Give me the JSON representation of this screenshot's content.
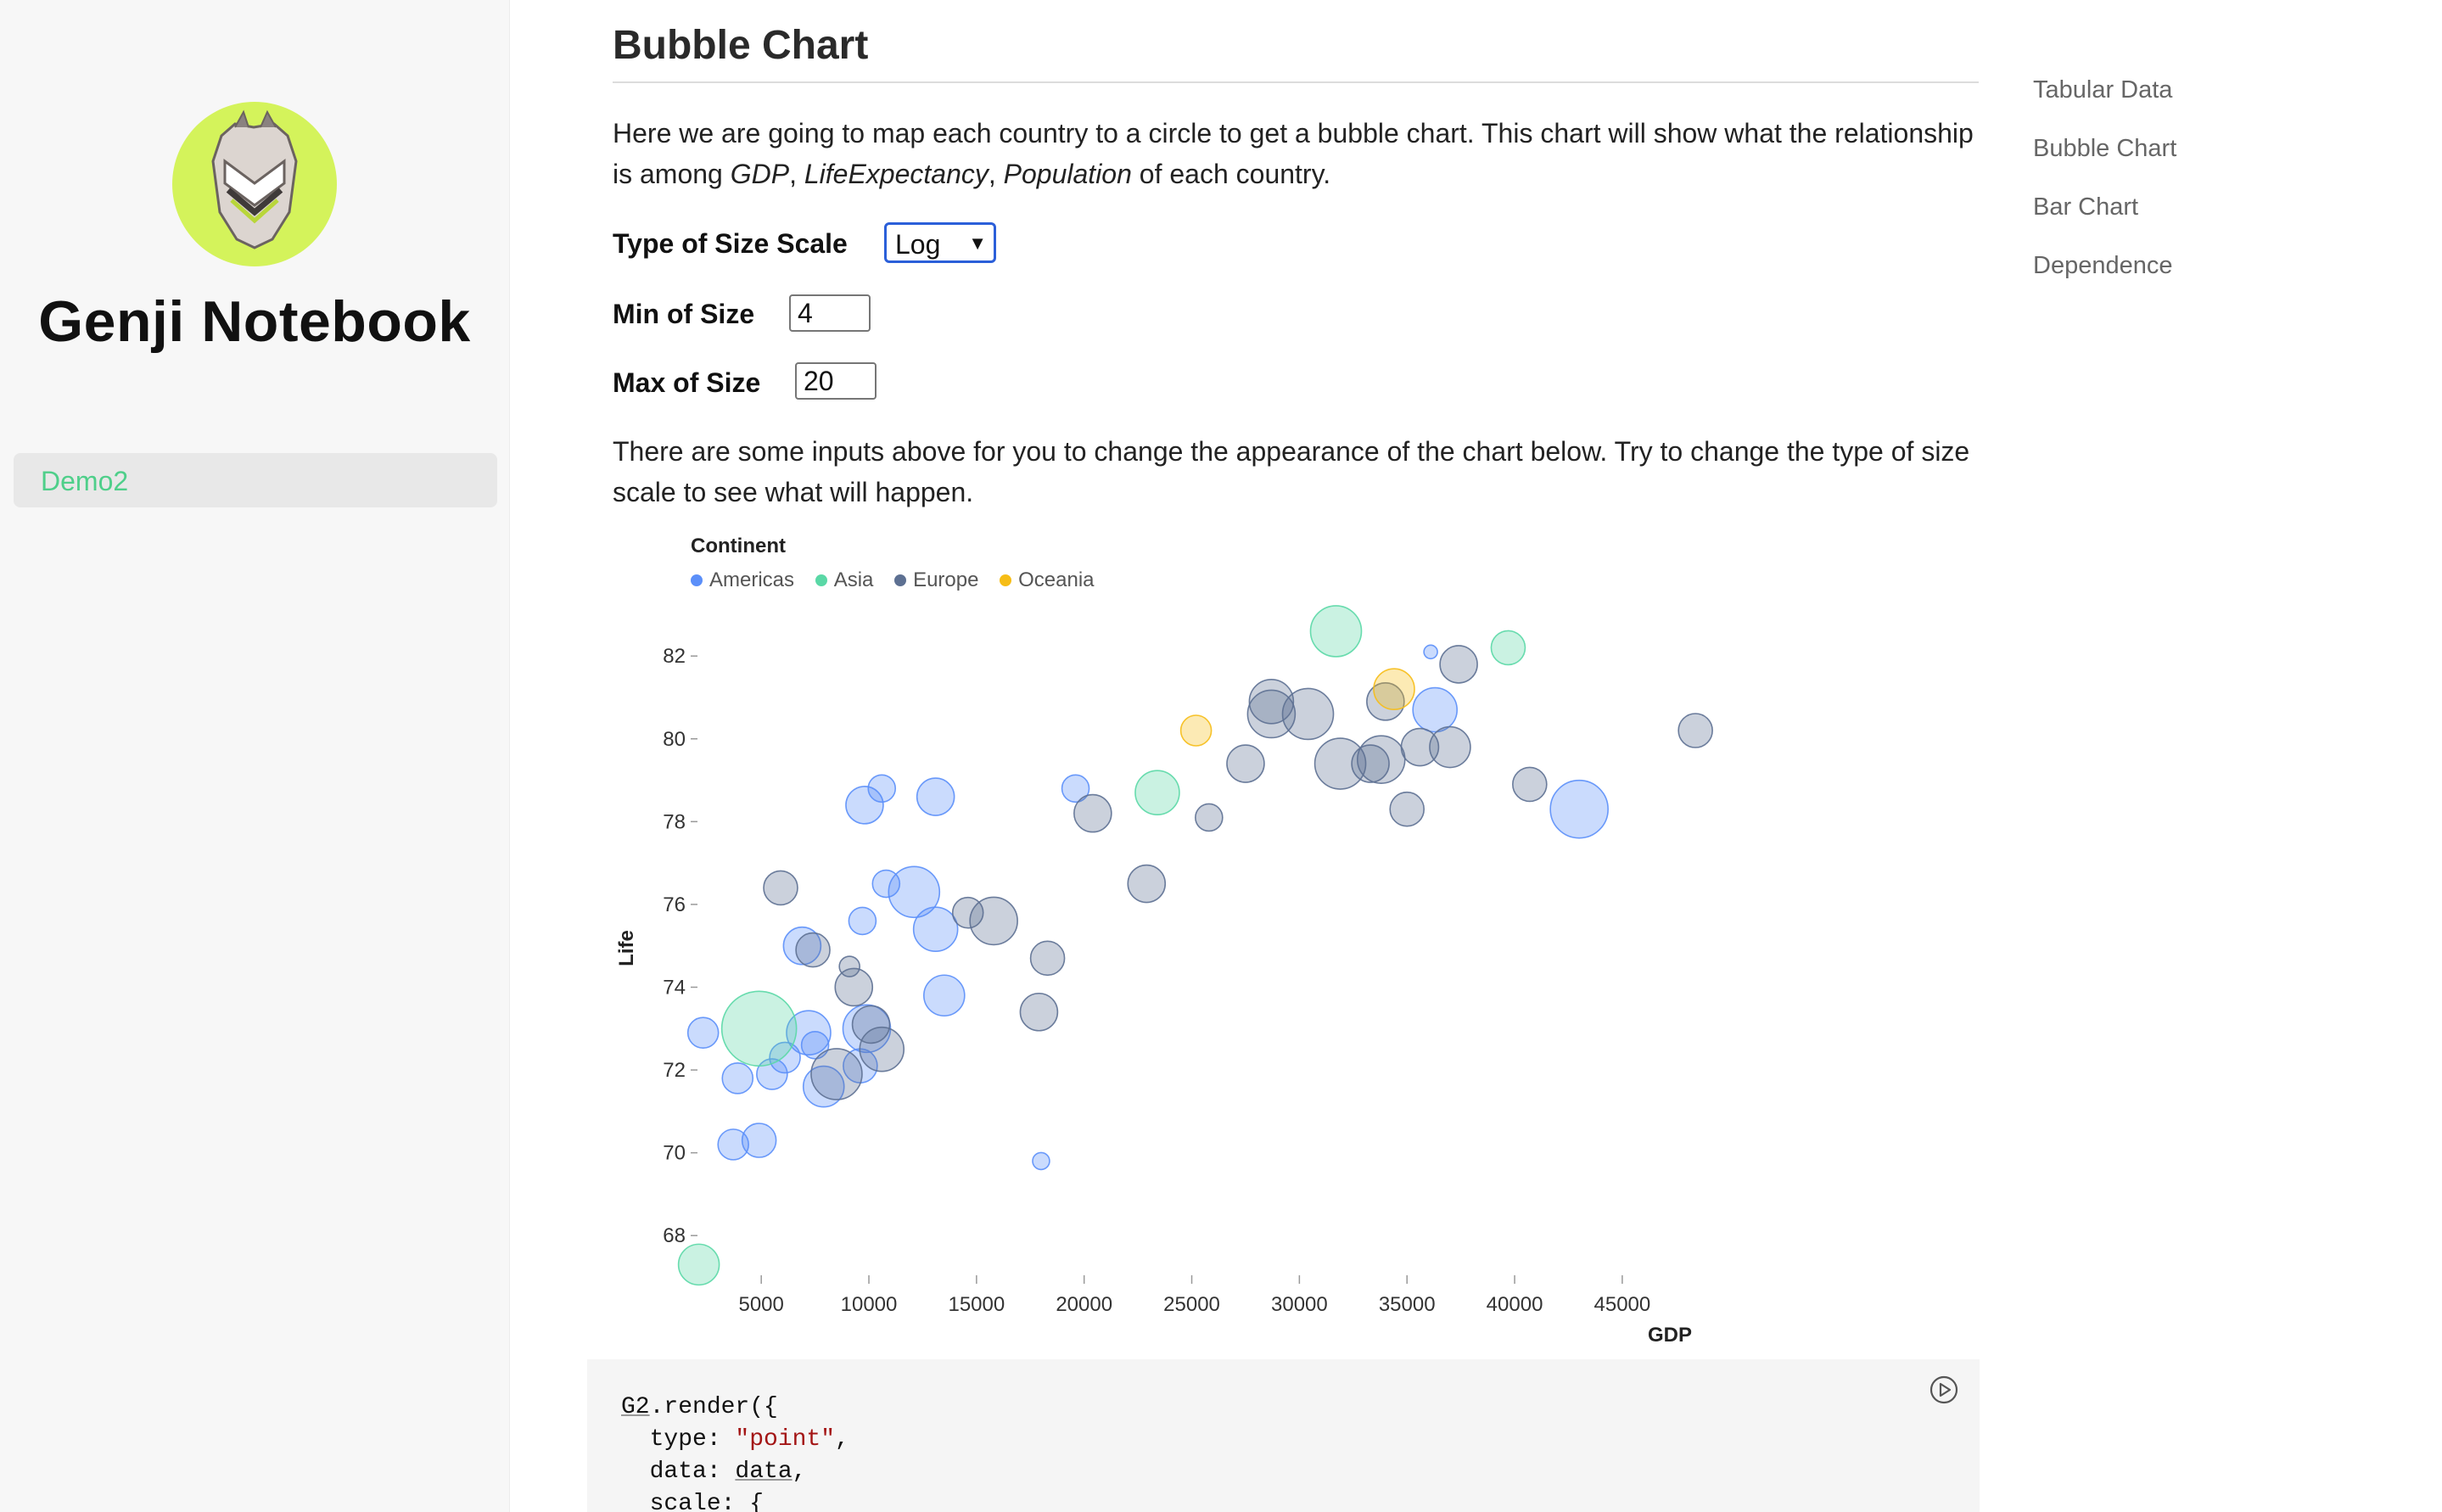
{
  "sidebar": {
    "brand": "Genji Notebook",
    "nav": [
      {
        "label": "Demo2",
        "active": true
      }
    ]
  },
  "main": {
    "title": "Bubble Chart",
    "intro": {
      "before": "Here we are going to map each country to a circle to get a bubble chart. This chart will show what the relationship is among ",
      "term1": "GDP",
      "sep1": ", ",
      "term2": "LifeExpectancy",
      "sep2": ", ",
      "term3": "Population",
      "after": " of each country."
    },
    "controls": {
      "scale_label": "Type of Size Scale",
      "scale_value": "Log",
      "min_label": "Min of Size",
      "min_value": "4",
      "max_label": "Max of Size",
      "max_value": "20"
    },
    "note": "There are some inputs above for you to change the appearance of the chart below. Try to change the type of size scale to see what will happen."
  },
  "chart_data": {
    "type": "scatter",
    "title": "",
    "xlabel": "GDP",
    "ylabel": "Life",
    "xlim": [
      1800,
      48000
    ],
    "ylim": [
      67,
      83.5
    ],
    "x_ticks": [
      5000,
      10000,
      15000,
      20000,
      25000,
      30000,
      35000,
      40000,
      45000
    ],
    "y_ticks": [
      68,
      70,
      72,
      74,
      76,
      78,
      80,
      82
    ],
    "size_scale": "log",
    "legend_title": "Continent",
    "legend_position": "top-left",
    "series": [
      {
        "name": "Americas",
        "color": "#5b8ff9",
        "points": [
          [
            6900,
            75
          ],
          [
            2300,
            72.9
          ],
          [
            4900,
            70.3
          ],
          [
            3700,
            70.2
          ],
          [
            7200,
            72.9
          ],
          [
            9900,
            73
          ],
          [
            9600,
            72.1
          ],
          [
            12100,
            76.3
          ],
          [
            13100,
            75.4
          ],
          [
            9800,
            78.4
          ],
          [
            10600,
            78.8
          ],
          [
            13100,
            78.6
          ],
          [
            10800,
            76.5
          ],
          [
            9700,
            75.6
          ],
          [
            13500,
            73.8
          ],
          [
            7500,
            72.6
          ],
          [
            6100,
            72.3
          ],
          [
            3900,
            71.8
          ],
          [
            5500,
            71.9
          ],
          [
            7900,
            71.6
          ],
          [
            18000,
            69.8
          ],
          [
            19600,
            78.8
          ],
          [
            36300,
            80.7
          ],
          [
            43000,
            78.3
          ],
          [
            36100,
            82.1
          ]
        ],
        "sizes": [
          22,
          18,
          20,
          18,
          26,
          28,
          20,
          30,
          26,
          22,
          16,
          22,
          16,
          16,
          24,
          16,
          18,
          18,
          18,
          24,
          10,
          16,
          26,
          34,
          8
        ]
      },
      {
        "name": "Asia",
        "color": "#5ad8a6",
        "points": [
          [
            31700,
            82.6
          ],
          [
            39700,
            82.2
          ],
          [
            23400,
            78.7
          ],
          [
            4900,
            73
          ],
          [
            2100,
            67.3
          ]
        ],
        "sizes": [
          30,
          20,
          26,
          44,
          24
        ]
      },
      {
        "name": "Europe",
        "color": "#5d7092",
        "points": [
          [
            5900,
            76.4
          ],
          [
            7400,
            74.9
          ],
          [
            9300,
            74
          ],
          [
            10100,
            73.1
          ],
          [
            10600,
            72.5
          ],
          [
            9100,
            74.5
          ],
          [
            8500,
            71.9
          ],
          [
            14600,
            75.8
          ],
          [
            15800,
            75.6
          ],
          [
            18300,
            74.7
          ],
          [
            20400,
            78.2
          ],
          [
            17900,
            73.4
          ],
          [
            22900,
            76.5
          ],
          [
            25800,
            78.1
          ],
          [
            27500,
            79.4
          ],
          [
            28700,
            80.9
          ],
          [
            28700,
            80.6
          ],
          [
            30400,
            80.6
          ],
          [
            31900,
            79.4
          ],
          [
            33300,
            79.4
          ],
          [
            33800,
            79.5
          ],
          [
            34000,
            80.9
          ],
          [
            35600,
            79.8
          ],
          [
            37000,
            79.8
          ],
          [
            35000,
            78.3
          ],
          [
            37400,
            81.8
          ],
          [
            40700,
            78.9
          ],
          [
            48400,
            80.2
          ]
        ],
        "sizes": [
          20,
          20,
          22,
          22,
          26,
          12,
          30,
          18,
          28,
          20,
          22,
          22,
          22,
          16,
          22,
          26,
          28,
          30,
          30,
          22,
          28,
          22,
          22,
          24,
          20,
          22,
          20,
          20
        ]
      },
      {
        "name": "Oceania",
        "color": "#f6bd16",
        "points": [
          [
            25200,
            80.2
          ],
          [
            34400,
            81.2
          ]
        ],
        "sizes": [
          18,
          24
        ]
      }
    ]
  },
  "code": {
    "lines": [
      "G2.render({",
      "  type: \"point\",",
      "  data: data,",
      "  scale: {"
    ]
  },
  "toc": {
    "items": [
      "Tabular Data",
      "Bubble Chart",
      "Bar Chart",
      "Dependence"
    ]
  },
  "colors": {
    "accent": "#4fcf8a",
    "select_border": "#2b5fd9",
    "avatar_bg": "#d4f35b"
  }
}
